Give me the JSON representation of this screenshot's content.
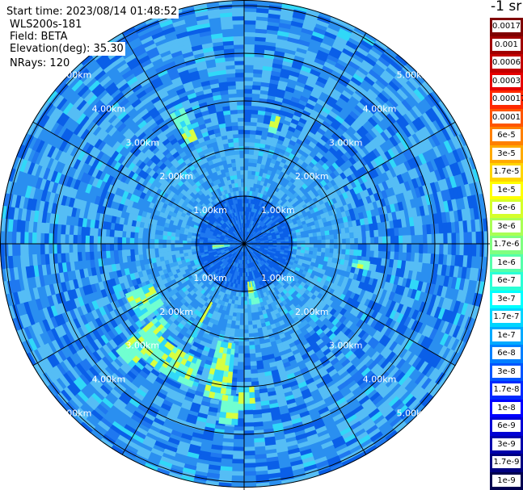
{
  "header": {
    "start_time": "Start time: 2023/08/14 01:48:52",
    "site": "WLS200s-181",
    "field": "Field: BETA",
    "elevation": "Elevation(deg): 35.30",
    "nrays": "NRays: 120"
  },
  "colorbar": {
    "unit": "-1 sr",
    "levels": [
      {
        "label": "0.0017",
        "color": "#7f0000"
      },
      {
        "label": "0.001",
        "color": "#a00000"
      },
      {
        "label": "0.0006",
        "color": "#c30000"
      },
      {
        "label": "0.0003",
        "color": "#e60000"
      },
      {
        "label": "0.00017",
        "color": "#ff2a00"
      },
      {
        "label": "0.0001",
        "color": "#ff5500"
      },
      {
        "label": "6e-5",
        "color": "#ff8000"
      },
      {
        "label": "3e-5",
        "color": "#ffaa00"
      },
      {
        "label": "1.7e-5",
        "color": "#ffd500"
      },
      {
        "label": "1e-5",
        "color": "#ffff00"
      },
      {
        "label": "6e-6",
        "color": "#d5ff2a"
      },
      {
        "label": "3e-6",
        "color": "#aaff55"
      },
      {
        "label": "1.7e-6",
        "color": "#80ff80"
      },
      {
        "label": "1e-6",
        "color": "#55ffaa"
      },
      {
        "label": "6e-7",
        "color": "#2affd5"
      },
      {
        "label": "3e-7",
        "color": "#00ffff"
      },
      {
        "label": "1.7e-7",
        "color": "#00d5ff"
      },
      {
        "label": "1e-7",
        "color": "#00aaff"
      },
      {
        "label": "6e-8",
        "color": "#0080ff"
      },
      {
        "label": "3e-8",
        "color": "#0055ff"
      },
      {
        "label": "1.7e-8",
        "color": "#002aff"
      },
      {
        "label": "1e-8",
        "color": "#0000ff"
      },
      {
        "label": "6e-9",
        "color": "#0000d5"
      },
      {
        "label": "3e-9",
        "color": "#0000aa"
      },
      {
        "label": "1.7e-9",
        "color": "#000080"
      },
      {
        "label": "1e-9",
        "color": "#00004f"
      }
    ]
  },
  "rings": {
    "labels": [
      "1.00km",
      "2.00km",
      "3.00km",
      "4.00km",
      "5.00km"
    ]
  },
  "palette": {
    "background_blue": "#2a8ff0",
    "dark_blue": "#0a5fe8",
    "light_blue": "#55bdf5",
    "cyan": "#30d8f8",
    "aqua": "#70ffd0",
    "yellow_green": "#d8ff40"
  }
}
